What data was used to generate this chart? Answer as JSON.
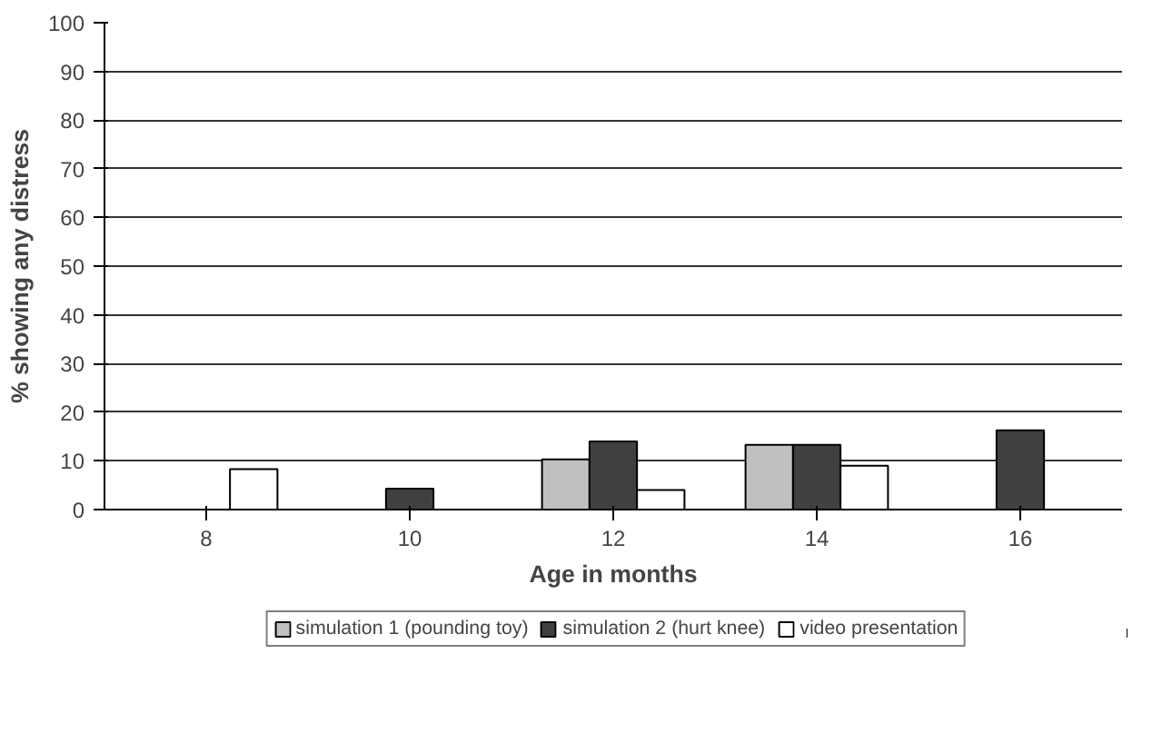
{
  "chart_data": {
    "type": "bar",
    "xlabel": "Age in months",
    "ylabel": "% showing any distress",
    "categories": [
      "8",
      "10",
      "12",
      "14",
      "16"
    ],
    "series": [
      {
        "name": "simulation 1 (pounding toy)",
        "color": "#c0c0c0",
        "values": [
          null,
          null,
          10.3,
          13.3,
          null
        ]
      },
      {
        "name": "simulation 2 (hurt knee)",
        "color": "#404040",
        "values": [
          null,
          4.3,
          14,
          13.3,
          16.3
        ]
      },
      {
        "name": "video presentation",
        "color": "#ffffff",
        "values": [
          8.3,
          null,
          4,
          9,
          null
        ]
      }
    ],
    "ylim": [
      0,
      100
    ],
    "yticks": [
      0,
      10,
      20,
      30,
      40,
      50,
      60,
      70,
      80,
      90,
      100
    ],
    "grid": "y",
    "legend": "bottom"
  }
}
